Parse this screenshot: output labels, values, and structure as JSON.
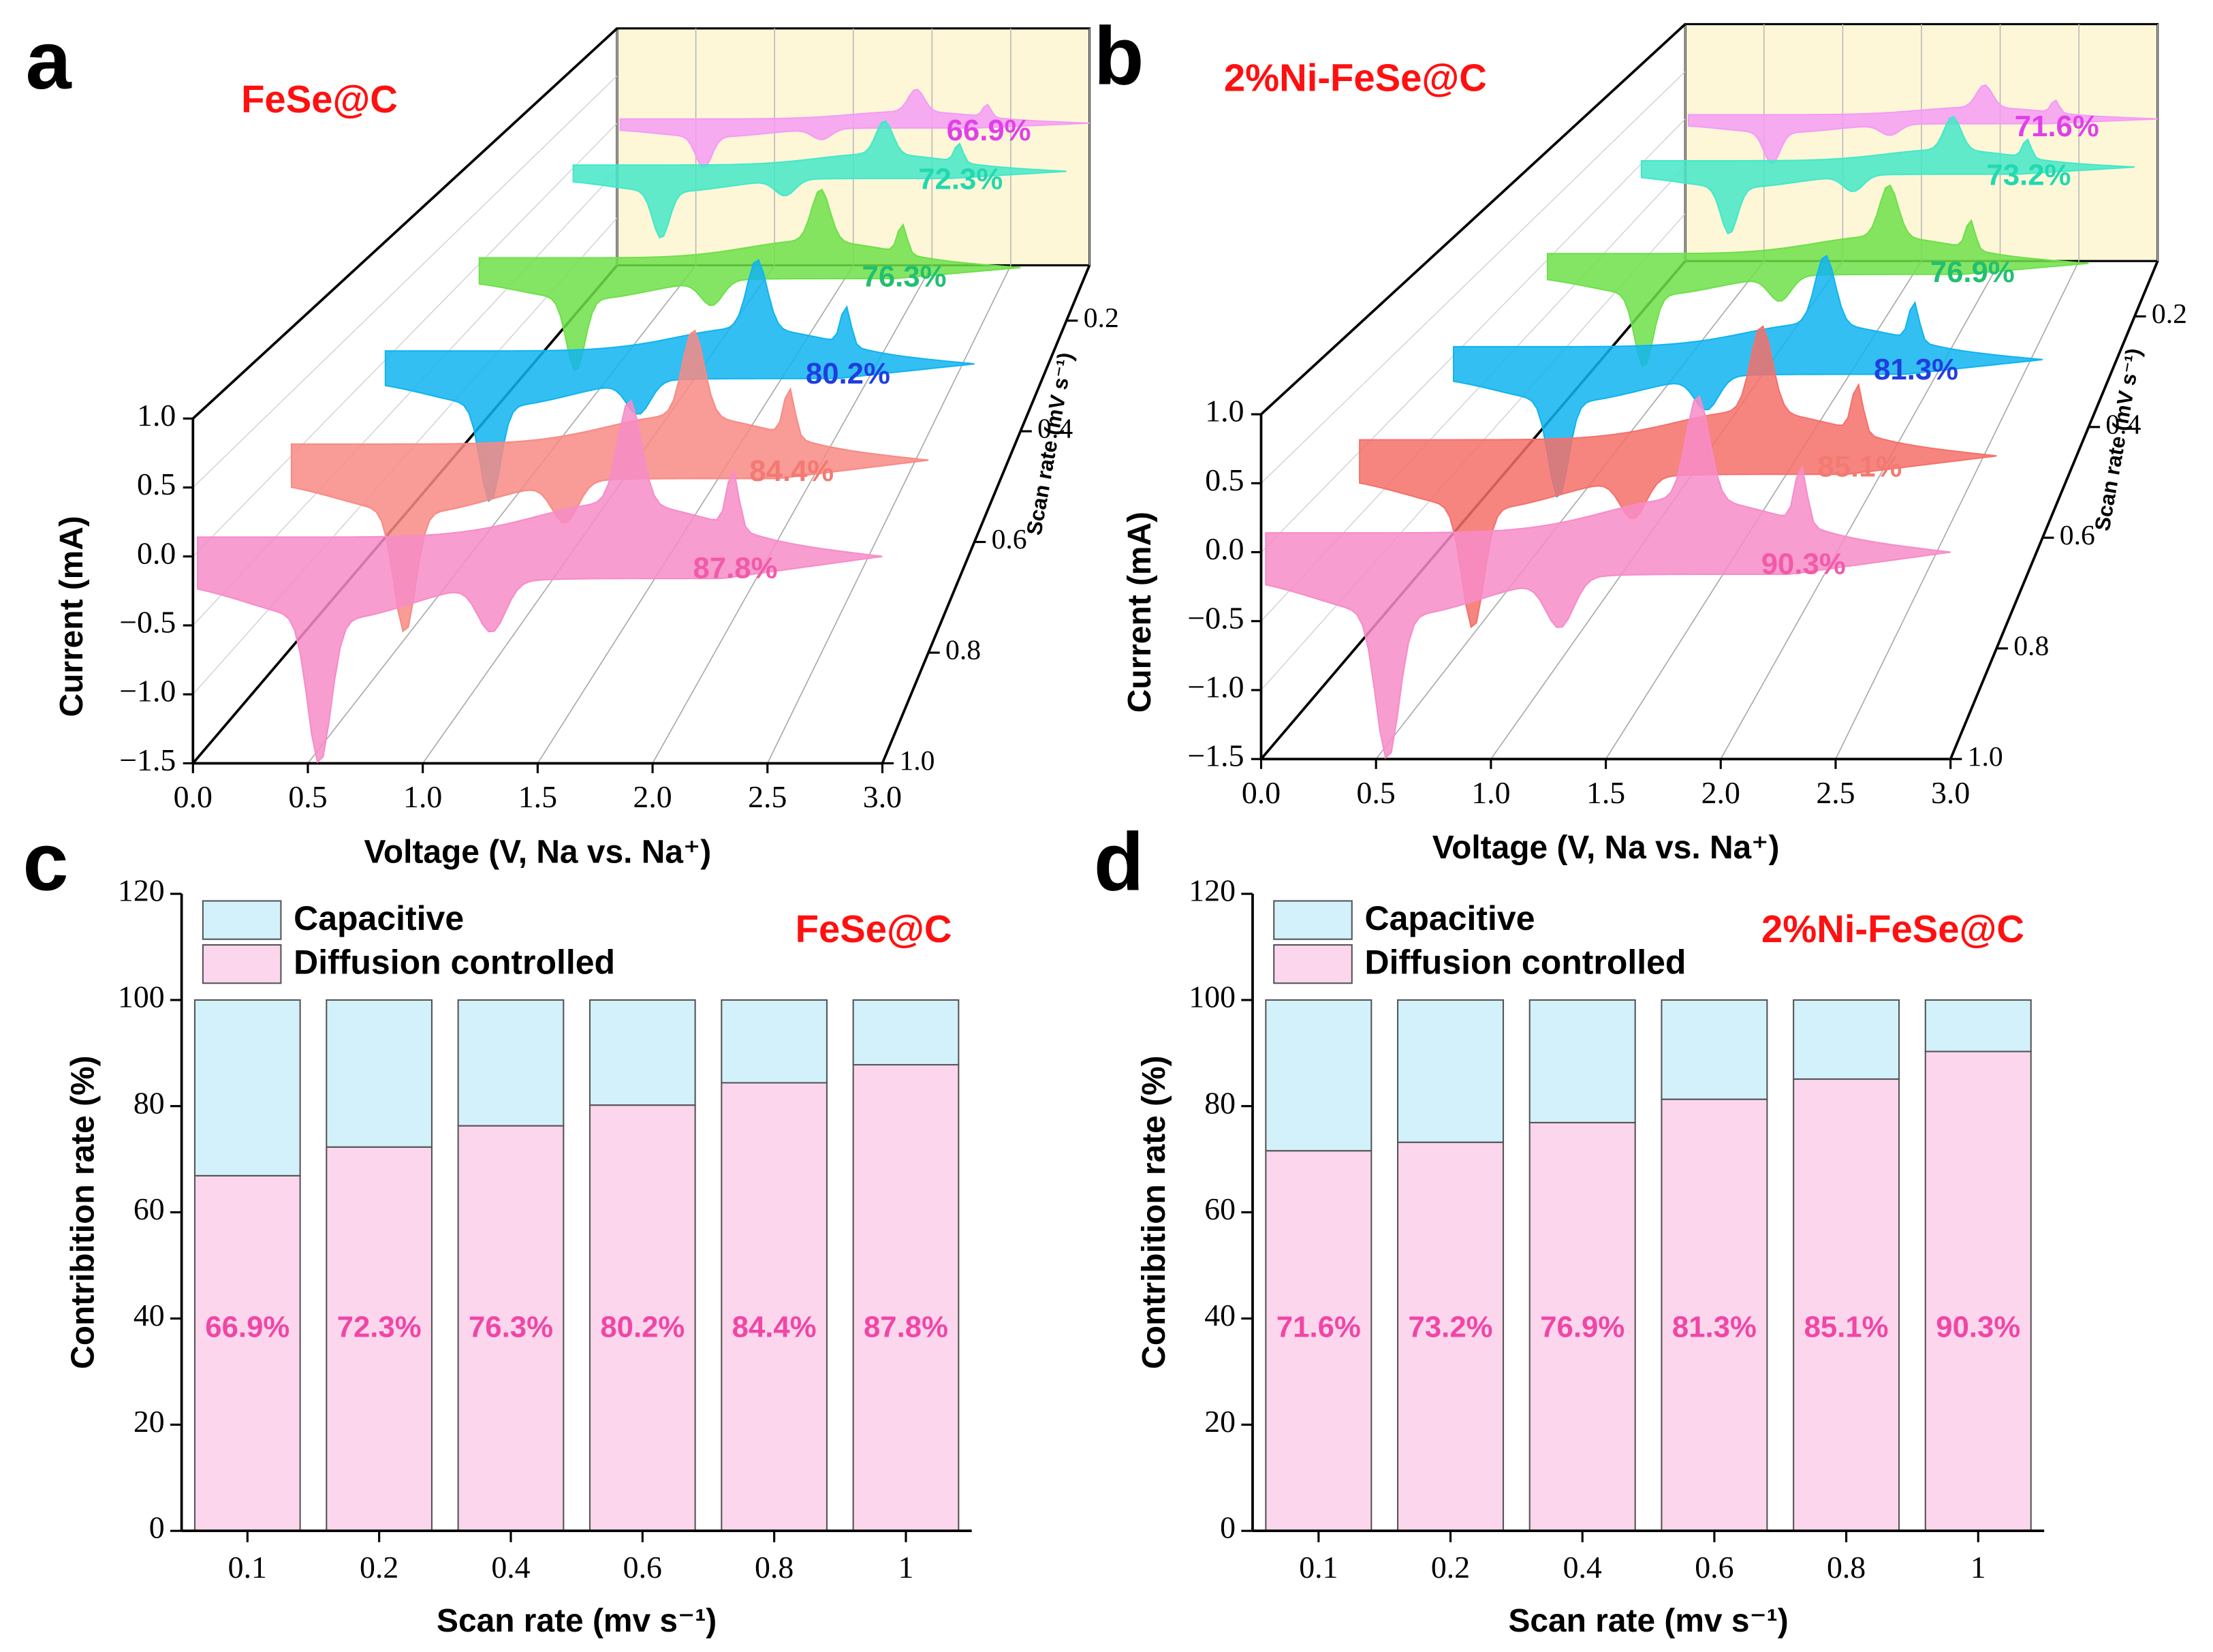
{
  "chart_data": [
    {
      "type": "cv3d",
      "panel": "a",
      "title": "FeSe@C",
      "title_color": "#ff1010",
      "xlabel": "Voltage (V, Na vs. Na⁺)",
      "ylabel": "Current (mA)",
      "zlabel": "Scan rate (mV s⁻¹)",
      "xlim": [
        0,
        3
      ],
      "xticks": [
        {
          "value": 0,
          "label": "0.0"
        },
        0.5,
        {
          "value": 1,
          "label": "1.0"
        },
        1.5,
        {
          "value": 2,
          "label": "2.0"
        },
        2.5,
        {
          "value": 3,
          "label": "3.0"
        }
      ],
      "ylim": [
        -1.5,
        1
      ],
      "yticks": [
        {
          "value": -1.5,
          "label": "−1.5"
        },
        {
          "value": -1,
          "label": "−1.0"
        },
        {
          "value": -0.5,
          "label": "−0.5"
        },
        {
          "value": 0,
          "label": "0.0"
        },
        0.5,
        {
          "value": 1,
          "label": "1.0"
        }
      ],
      "zlim": [
        0.1,
        1
      ],
      "zticks": [
        0.2,
        0.4,
        0.6,
        0.8,
        {
          "value": 1,
          "label": "1.0"
        }
      ],
      "scan_rates": [
        0.1,
        0.2,
        0.4,
        0.6,
        0.8,
        1
      ],
      "colors": [
        "#f49cf4",
        "#44e8c8",
        "#6ee04a",
        "#10b4f0",
        "#f88a84",
        "#f78cc8"
      ],
      "label_colors": [
        "#e040e8",
        "#22d8b0",
        "#20c070",
        "#1f3ee0",
        "#f27a72",
        "#f25aa8"
      ],
      "values": [
        66.9,
        72.3,
        76.3,
        80.2,
        84.4,
        87.8
      ],
      "value_labels": [
        "66.9%",
        "72.3%",
        "76.3%",
        "80.2%",
        "84.4%",
        "87.8%"
      ]
    },
    {
      "type": "cv3d",
      "panel": "b",
      "title": "2%Ni-FeSe@C",
      "title_color": "#ff1010",
      "xlabel": "Voltage (V, Na vs. Na⁺)",
      "ylabel": "Current (mA)",
      "zlabel": "Scan rate (mV s⁻¹)",
      "xlim": [
        0,
        3
      ],
      "xticks": [
        {
          "value": 0,
          "label": "0.0"
        },
        0.5,
        {
          "value": 1,
          "label": "1.0"
        },
        1.5,
        {
          "value": 2,
          "label": "2.0"
        },
        2.5,
        {
          "value": 3,
          "label": "3.0"
        }
      ],
      "ylim": [
        -1.5,
        1
      ],
      "yticks": [
        {
          "value": -1.5,
          "label": "−1.5"
        },
        {
          "value": -1,
          "label": "−1.0"
        },
        {
          "value": -0.5,
          "label": "−0.5"
        },
        {
          "value": 0,
          "label": "0.0"
        },
        0.5,
        {
          "value": 1,
          "label": "1.0"
        }
      ],
      "zlim": [
        0.1,
        1
      ],
      "zticks": [
        0.2,
        0.4,
        0.6,
        0.8,
        {
          "value": 1,
          "label": "1.0"
        }
      ],
      "scan_rates": [
        0.1,
        0.2,
        0.4,
        0.6,
        0.8,
        1
      ],
      "colors": [
        "#f49cf4",
        "#44e8c8",
        "#6ee04a",
        "#10b4f0",
        "#f5706a",
        "#f78cc8"
      ],
      "label_colors": [
        "#e040e8",
        "#22d8b0",
        "#20c070",
        "#1f3ee0",
        "#f27a72",
        "#f25aa8"
      ],
      "values": [
        71.6,
        73.2,
        76.9,
        81.3,
        85.1,
        90.3
      ],
      "value_labels": [
        "71.6%",
        "73.2%",
        "76.9%",
        "81.3%",
        "85.1%",
        "90.3%"
      ]
    },
    {
      "type": "stacked-bar",
      "panel": "c",
      "title": "FeSe@C",
      "title_color": "#ff1010",
      "xlabel": "Scan rate (mv s⁻¹)",
      "ylabel": "Contribition rate (%)",
      "categories": [
        "0.1",
        "0.2",
        "0.4",
        "0.6",
        "0.8",
        "1"
      ],
      "ylim": [
        0,
        120
      ],
      "yticks": [
        0,
        20,
        40,
        60,
        80,
        100,
        120
      ],
      "legend": "upper left",
      "label_color": "#f046a6",
      "series": [
        {
          "name": "Diffusion controlled",
          "color": "#fcd6ec",
          "values": [
            66.9,
            72.3,
            76.3,
            80.2,
            84.4,
            87.8
          ],
          "value_labels": [
            "66.9%",
            "72.3%",
            "76.3%",
            "80.2%",
            "84.4%",
            "87.8%"
          ]
        },
        {
          "name": "Capacitive",
          "color": "#d2f1fb",
          "values": [
            33.1,
            27.7,
            23.7,
            19.8,
            15.6,
            12.2
          ]
        }
      ]
    },
    {
      "type": "stacked-bar",
      "panel": "d",
      "title": "2%Ni-FeSe@C",
      "title_color": "#ff1010",
      "xlabel": "Scan rate (mv s⁻¹)",
      "ylabel": "Contribition rate (%)",
      "categories": [
        "0.1",
        "0.2",
        "0.4",
        "0.6",
        "0.8",
        "1"
      ],
      "ylim": [
        0,
        120
      ],
      "yticks": [
        0,
        20,
        40,
        60,
        80,
        100,
        120
      ],
      "legend": "upper left",
      "label_color": "#f046a6",
      "series": [
        {
          "name": "Diffusion controlled",
          "color": "#fcd6ec",
          "values": [
            71.6,
            73.2,
            76.9,
            81.3,
            85.1,
            90.3
          ],
          "value_labels": [
            "71.6%",
            "73.2%",
            "76.9%",
            "81.3%",
            "85.1%",
            "90.3%"
          ]
        },
        {
          "name": "Capacitive",
          "color": "#d2f1fb",
          "values": [
            28.4,
            26.8,
            23.1,
            18.7,
            14.9,
            9.7
          ]
        }
      ]
    }
  ]
}
